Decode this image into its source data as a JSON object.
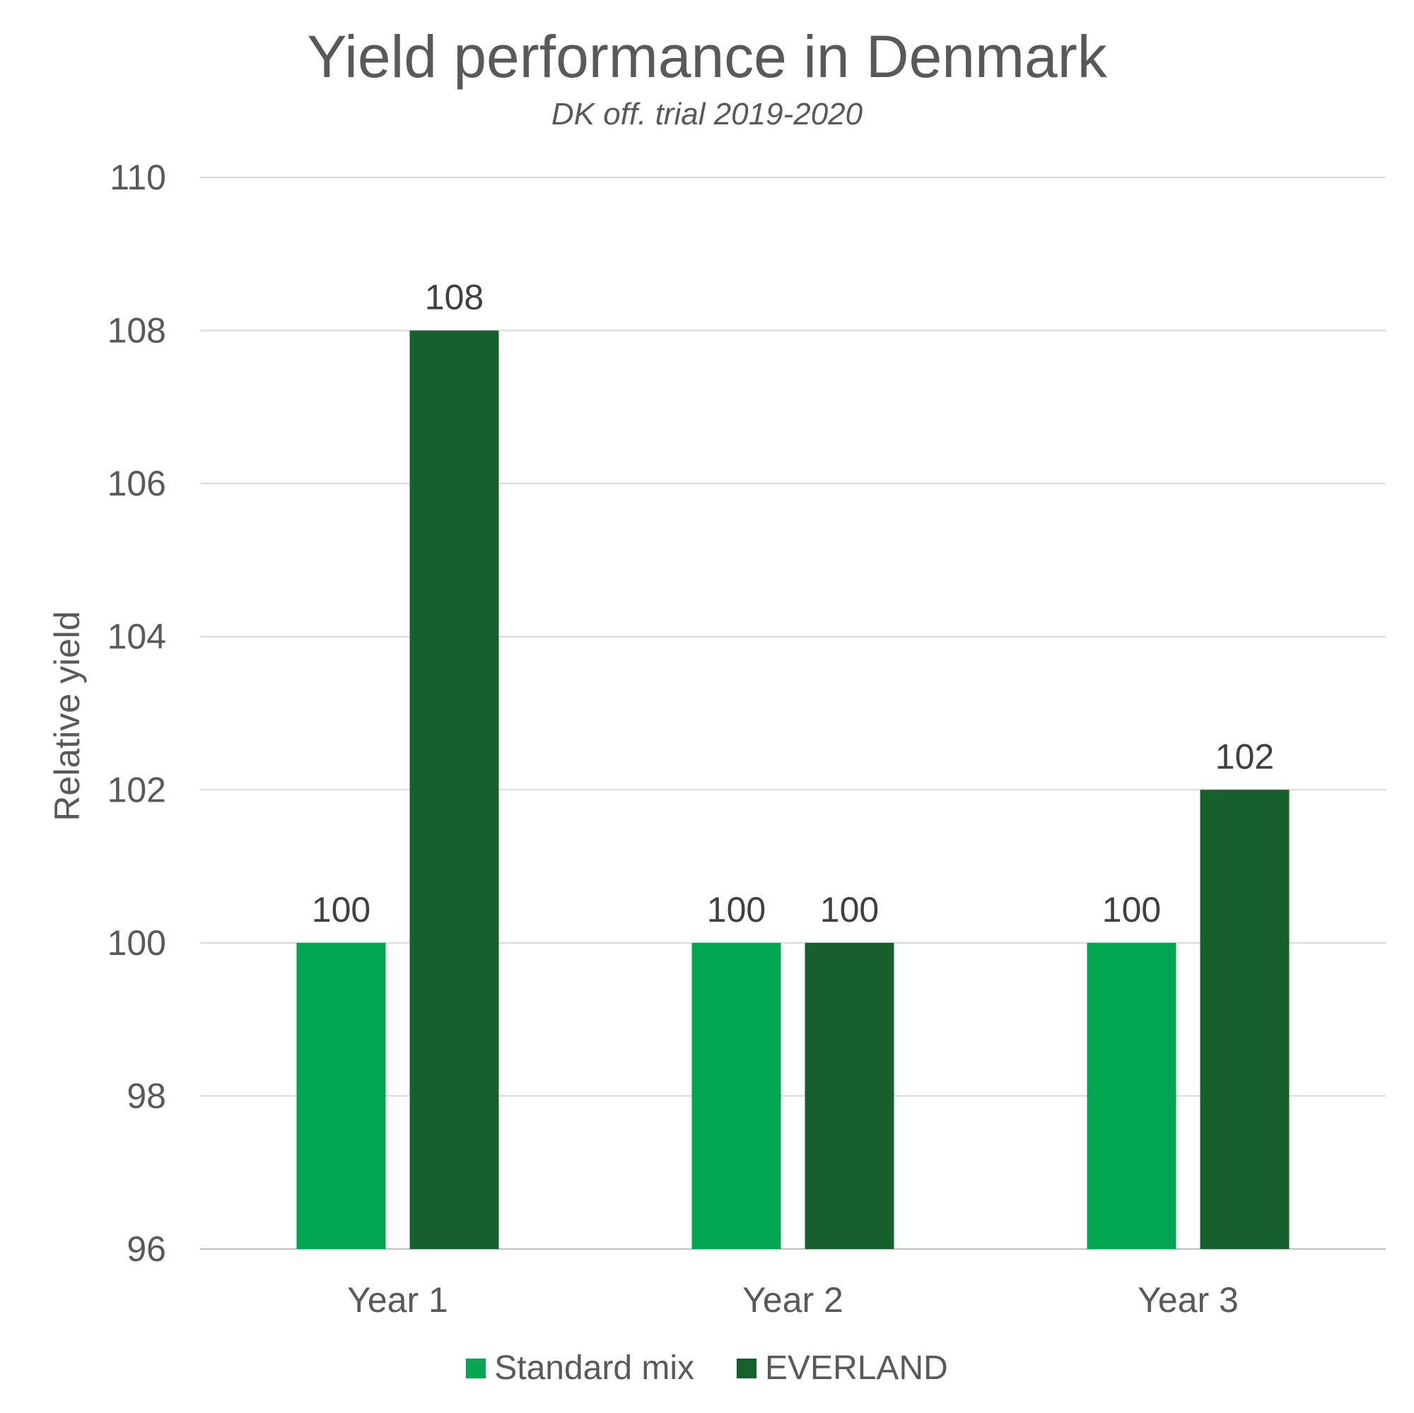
{
  "chart_data": {
    "type": "bar",
    "title": "Yield performance in Denmark",
    "subtitle": "DK off. trial 2019-2020",
    "xlabel": "",
    "ylabel": "Relative yield",
    "ylim": [
      96,
      110
    ],
    "yticks": [
      96,
      98,
      100,
      102,
      104,
      106,
      108,
      110
    ],
    "grid": true,
    "legend_position": "bottom",
    "categories": [
      "Year 1",
      "Year 2",
      "Year 3"
    ],
    "series": [
      {
        "name": "Standard mix",
        "color": "#00A651",
        "values": [
          100,
          100,
          100
        ]
      },
      {
        "name": "EVERLAND",
        "color": "#16602E",
        "values": [
          108,
          100,
          102
        ]
      }
    ]
  }
}
